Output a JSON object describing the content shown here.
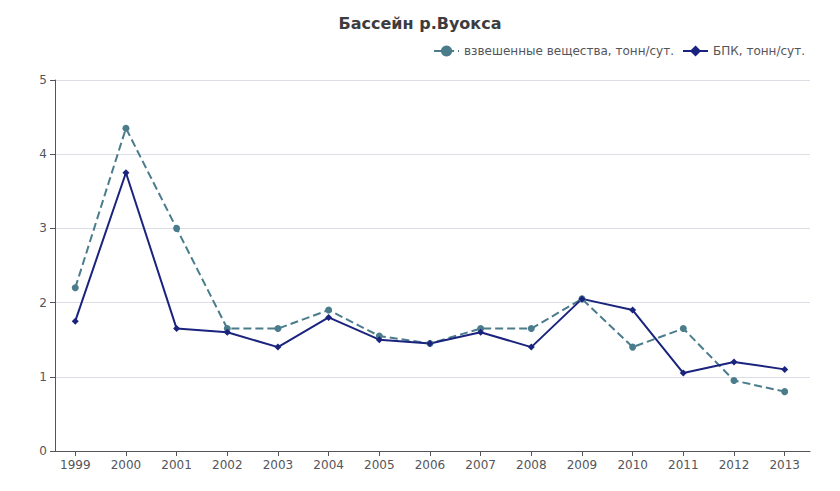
{
  "chart_data": {
    "type": "line",
    "title": "Бассейн р.Вуокса",
    "x": [
      1999,
      2000,
      2001,
      2002,
      2003,
      2004,
      2005,
      2006,
      2007,
      2008,
      2009,
      2010,
      2011,
      2012,
      2013
    ],
    "series": [
      {
        "name": "взвешенные вещества, тонн/сут.",
        "color": "#4a7c8c",
        "marker": "circle",
        "line_style": "dashed",
        "values": [
          2.2,
          4.35,
          3.0,
          1.65,
          1.65,
          1.9,
          1.55,
          1.45,
          1.65,
          1.65,
          2.05,
          1.4,
          1.65,
          0.95,
          0.8
        ]
      },
      {
        "name": "БПК, тонн/сут.",
        "color": "#1a237e",
        "marker": "diamond",
        "line_style": "solid",
        "values": [
          1.75,
          3.75,
          1.65,
          1.6,
          1.4,
          1.8,
          1.5,
          1.45,
          1.6,
          1.4,
          2.05,
          1.9,
          1.05,
          1.2,
          1.1
        ]
      }
    ],
    "xlim": [
      1998.6,
      2013.5
    ],
    "xticks": [
      1999,
      2000,
      2001,
      2002,
      2003,
      2004,
      2005,
      2006,
      2007,
      2008,
      2009,
      2010,
      2011,
      2012,
      2013
    ],
    "ylim": [
      0,
      5
    ],
    "yticks": [
      0,
      1,
      2,
      3,
      4,
      5
    ],
    "grid": true,
    "legend": "upper right"
  }
}
